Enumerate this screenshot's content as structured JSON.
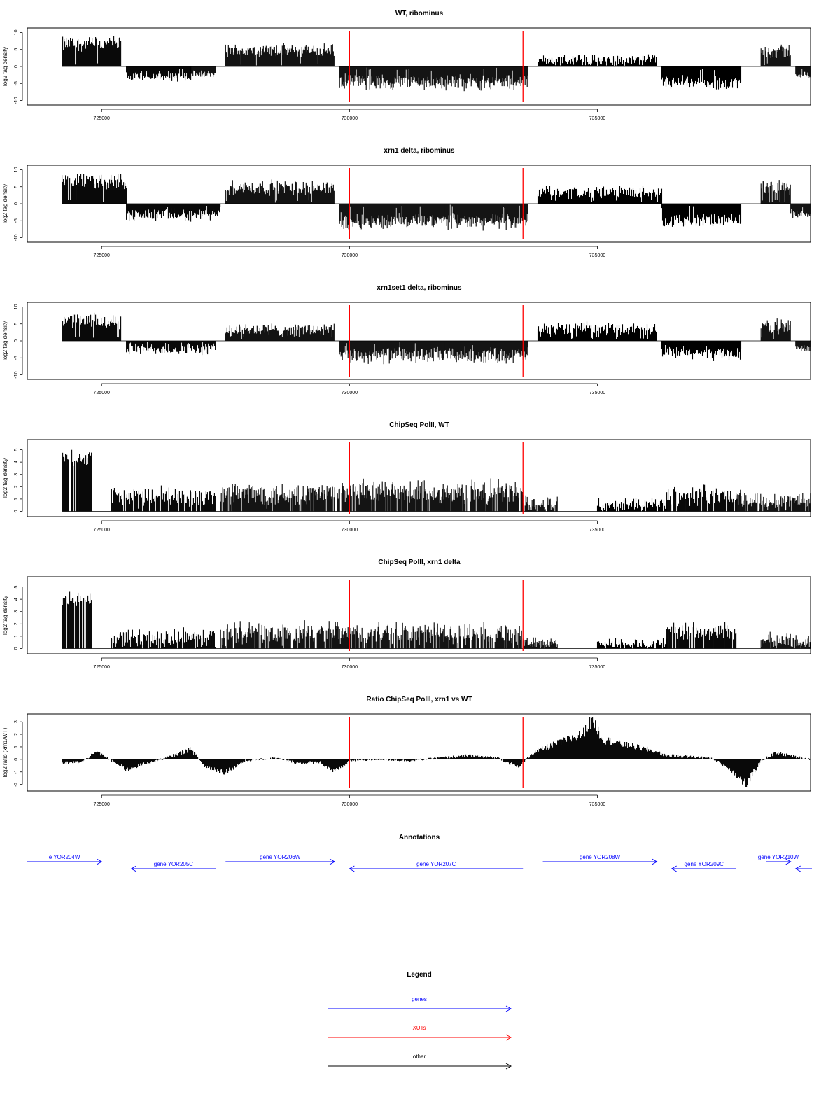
{
  "chart_data": [
    {
      "type": "bar",
      "title": "WT, ribominus",
      "ylabel": "log2 tag density",
      "xlim": [
        723500,
        739300
      ],
      "ylim": [
        -10.5,
        10.5
      ],
      "yticks": [
        "-10",
        "-5",
        "0",
        "5",
        "10"
      ],
      "yticks_values": [
        -10,
        -5,
        0,
        5,
        10
      ],
      "xticks": [
        "725000",
        "730000",
        "735000"
      ],
      "xticks_values": [
        725000,
        730000,
        735000
      ],
      "red_lines": [
        730000,
        733500
      ],
      "segments": [
        {
          "x0": 724200,
          "x1": 725400,
          "mean": 6.5,
          "amp": 2.8
        },
        {
          "x0": 725500,
          "x1": 726800,
          "mean": -2.8,
          "amp": 1.8
        },
        {
          "x0": 726800,
          "x1": 727300,
          "mean": -2.3,
          "amp": 1.2
        },
        {
          "x0": 727500,
          "x1": 729700,
          "mean": 4.6,
          "amp": 2.4
        },
        {
          "x0": 729800,
          "x1": 733600,
          "mean": -4.6,
          "amp": 2.8
        },
        {
          "x0": 733800,
          "x1": 736200,
          "mean": 1.8,
          "amp": 2.0
        },
        {
          "x0": 736300,
          "x1": 737900,
          "mean": -4.8,
          "amp": 2.6
        },
        {
          "x0": 738300,
          "x1": 738900,
          "mean": 4.5,
          "amp": 2.6
        },
        {
          "x0": 739000,
          "x1": 739300,
          "mean": -2.5,
          "amp": 1.5
        }
      ]
    },
    {
      "type": "bar",
      "title": "xrn1 delta, ribominus",
      "ylabel": "log2 tag density",
      "xlim": [
        723500,
        739300
      ],
      "ylim": [
        -10.5,
        10.5
      ],
      "yticks": [
        "-10",
        "-5",
        "0",
        "5",
        "10"
      ],
      "yticks_values": [
        -10,
        -5,
        0,
        5,
        10
      ],
      "xticks": [
        "725000",
        "730000",
        "735000"
      ],
      "xticks_values": [
        725000,
        730000,
        735000
      ],
      "red_lines": [
        730000,
        733500
      ],
      "segments": [
        {
          "x0": 724200,
          "x1": 725500,
          "mean": 6.5,
          "amp": 3.0
        },
        {
          "x0": 725500,
          "x1": 727400,
          "mean": -3.3,
          "amp": 2.2
        },
        {
          "x0": 727500,
          "x1": 729700,
          "mean": 4.7,
          "amp": 2.6
        },
        {
          "x0": 729800,
          "x1": 733600,
          "mean": -5.2,
          "amp": 2.8
        },
        {
          "x0": 733800,
          "x1": 736300,
          "mean": 3.3,
          "amp": 2.2
        },
        {
          "x0": 736300,
          "x1": 737900,
          "mean": -4.9,
          "amp": 2.4
        },
        {
          "x0": 738300,
          "x1": 738900,
          "mean": 5.0,
          "amp": 2.6
        },
        {
          "x0": 738900,
          "x1": 739300,
          "mean": -3.0,
          "amp": 1.6
        }
      ]
    },
    {
      "type": "bar",
      "title": "xrn1set1 delta, ribominus",
      "ylabel": "log2 tag density",
      "xlim": [
        723500,
        739300
      ],
      "ylim": [
        -10.5,
        10.5
      ],
      "yticks": [
        "-10",
        "-5",
        "0",
        "5",
        "10"
      ],
      "yticks_values": [
        -10,
        -5,
        0,
        5,
        10
      ],
      "xticks": [
        "725000",
        "730000",
        "735000"
      ],
      "xticks_values": [
        725000,
        730000,
        735000
      ],
      "red_lines": [
        730000,
        733500
      ],
      "segments": [
        {
          "x0": 724200,
          "x1": 725400,
          "mean": 5.6,
          "amp": 3.0
        },
        {
          "x0": 725500,
          "x1": 727300,
          "mean": -2.3,
          "amp": 2.2
        },
        {
          "x0": 727500,
          "x1": 729700,
          "mean": 3.2,
          "amp": 2.4
        },
        {
          "x0": 729800,
          "x1": 733600,
          "mean": -4.2,
          "amp": 2.8
        },
        {
          "x0": 733800,
          "x1": 736200,
          "mean": 3.4,
          "amp": 2.4
        },
        {
          "x0": 736300,
          "x1": 737900,
          "mean": -3.6,
          "amp": 2.4
        },
        {
          "x0": 738300,
          "x1": 738900,
          "mean": 4.3,
          "amp": 2.6
        },
        {
          "x0": 739000,
          "x1": 739300,
          "mean": -2.3,
          "amp": 1.5
        }
      ]
    },
    {
      "type": "bar",
      "title": "ChipSeq PolII, WT",
      "ylabel": "log2 tag density",
      "xlim": [
        723500,
        739300
      ],
      "ylim": [
        -0.2,
        5.6
      ],
      "yticks": [
        "0",
        "1",
        "2",
        "3",
        "4",
        "5"
      ],
      "yticks_values": [
        0,
        1,
        2,
        3,
        4,
        5
      ],
      "xticks": [
        "725000",
        "730000",
        "735000"
      ],
      "xticks_values": [
        725000,
        730000,
        735000
      ],
      "red_lines": [
        730000,
        733500
      ],
      "segments": [
        {
          "x0": 724200,
          "x1": 724800,
          "mean": 4.3,
          "amp": 0.8
        },
        {
          "x0": 725200,
          "x1": 727300,
          "mean": 1.1,
          "amp": 1.1
        },
        {
          "x0": 727400,
          "x1": 729800,
          "mean": 1.4,
          "amp": 1.3
        },
        {
          "x0": 729800,
          "x1": 733500,
          "mean": 1.5,
          "amp": 1.3
        },
        {
          "x0": 733500,
          "x1": 734200,
          "mean": 0.6,
          "amp": 0.8
        },
        {
          "x0": 735000,
          "x1": 736400,
          "mean": 0.6,
          "amp": 0.7
        },
        {
          "x0": 736400,
          "x1": 737800,
          "mean": 1.3,
          "amp": 1.1
        },
        {
          "x0": 737800,
          "x1": 739300,
          "mean": 0.9,
          "amp": 1.0
        }
      ]
    },
    {
      "type": "bar",
      "title": "ChipSeq PolII, xrn1 delta",
      "ylabel": "log2 tag density",
      "xlim": [
        723500,
        739300
      ],
      "ylim": [
        -0.2,
        5.6
      ],
      "yticks": [
        "0",
        "1",
        "2",
        "3",
        "4",
        "5"
      ],
      "yticks_values": [
        0,
        1,
        2,
        3,
        4,
        5
      ],
      "xticks": [
        "725000",
        "730000",
        "735000"
      ],
      "xticks_values": [
        725000,
        730000,
        735000
      ],
      "red_lines": [
        730000,
        733500
      ],
      "segments": [
        {
          "x0": 724200,
          "x1": 724800,
          "mean": 4.0,
          "amp": 0.7
        },
        {
          "x0": 725200,
          "x1": 727300,
          "mean": 0.8,
          "amp": 1.0
        },
        {
          "x0": 727400,
          "x1": 729800,
          "mean": 1.2,
          "amp": 1.2
        },
        {
          "x0": 729800,
          "x1": 733500,
          "mean": 1.2,
          "amp": 1.1
        },
        {
          "x0": 733500,
          "x1": 734200,
          "mean": 0.4,
          "amp": 0.6
        },
        {
          "x0": 735000,
          "x1": 736400,
          "mean": 0.4,
          "amp": 0.6
        },
        {
          "x0": 736400,
          "x1": 737800,
          "mean": 1.3,
          "amp": 1.0
        },
        {
          "x0": 738300,
          "x1": 739300,
          "mean": 0.6,
          "amp": 0.8
        }
      ]
    },
    {
      "type": "area",
      "title": "Ratio ChipSeq PolII, xrn1 vs WT",
      "ylabel": "log2 ratio (xrn1/WT)",
      "xlim": [
        723500,
        739300
      ],
      "ylim": [
        -2.3,
        3.4
      ],
      "yticks": [
        "-2",
        "-1",
        "0",
        "1",
        "2",
        "3"
      ],
      "yticks_values": [
        -2,
        -1,
        0,
        1,
        2,
        3
      ],
      "xticks": [
        "725000",
        "730000",
        "735000"
      ],
      "xticks_values": [
        725000,
        730000,
        735000
      ],
      "red_lines": [
        730000,
        733500
      ],
      "x": [
        724200,
        724600,
        724900,
        725200,
        725500,
        725900,
        726300,
        726800,
        727100,
        727500,
        727900,
        728500,
        729000,
        729400,
        729700,
        730000,
        730600,
        731200,
        731800,
        732400,
        733000,
        733400,
        733700,
        734000,
        734300,
        734700,
        734900,
        735100,
        735500,
        736000,
        736400,
        736900,
        737300,
        737700,
        738000,
        738300,
        738600,
        739000,
        739300
      ],
      "values": [
        -0.3,
        -0.2,
        0.6,
        -0.1,
        -0.8,
        -0.3,
        0.1,
        0.8,
        -0.6,
        -1.0,
        -0.1,
        0.1,
        -0.3,
        -0.2,
        -1.0,
        -0.1,
        0.0,
        -0.1,
        0.1,
        0.3,
        0.1,
        -0.6,
        0.5,
        1.0,
        1.4,
        2.0,
        3.2,
        1.6,
        1.2,
        0.8,
        0.3,
        0.2,
        0.1,
        -0.8,
        -2.0,
        -0.1,
        0.5,
        0.2,
        0.0
      ]
    }
  ],
  "annotations": {
    "title": "Annotations",
    "genes": [
      {
        "label": "e YOR204W",
        "x0": 723500,
        "x1": 725000,
        "dir": "right",
        "row": 1
      },
      {
        "label": "gene YOR205C",
        "x0": 725600,
        "x1": 727300,
        "dir": "left",
        "row": 2
      },
      {
        "label": "gene YOR206W",
        "x0": 727500,
        "x1": 729700,
        "dir": "right",
        "row": 1
      },
      {
        "label": "gene YOR207C",
        "x0": 730000,
        "x1": 733500,
        "dir": "left",
        "row": 2
      },
      {
        "label": "gene YOR208W",
        "x0": 733900,
        "x1": 736200,
        "dir": "right",
        "row": 1
      },
      {
        "label": "gene YOR209C",
        "x0": 736500,
        "x1": 737800,
        "dir": "left",
        "row": 2
      },
      {
        "label": "gene YOR210W",
        "x0": 738400,
        "x1": 738900,
        "dir": "right",
        "row": 1
      },
      {
        "label": "",
        "x0": 739000,
        "x1": 740000,
        "dir": "left",
        "row": 2
      }
    ]
  },
  "legend": {
    "title": "Legend",
    "items": [
      {
        "label": "genes",
        "color": "#0000ff"
      },
      {
        "label": "XUTs",
        "color": "#ff0000"
      },
      {
        "label": "other",
        "color": "#000000"
      }
    ]
  },
  "colors": {
    "bars": "#000000",
    "marker_lines": "#ff0000",
    "gene_arrows": "#0000ff"
  }
}
